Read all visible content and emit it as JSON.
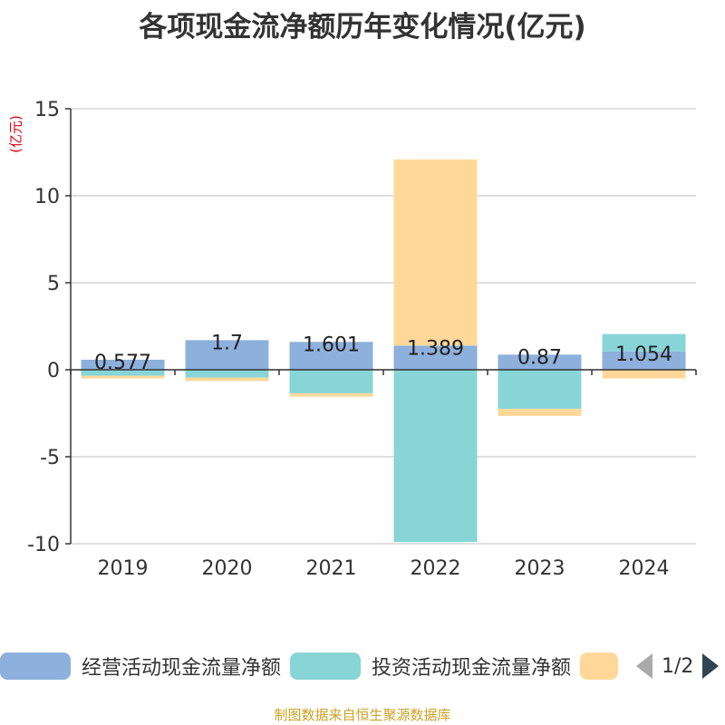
{
  "title": "各项现金流净额历年变化情况(亿元)",
  "unit_label": "(亿元)",
  "legend": {
    "items": [
      {
        "label": "经营活动现金流量净额",
        "color": "#8eb0dc"
      },
      {
        "label": "投资活动现金流量净额",
        "color": "#88d5d8"
      },
      {
        "label": "",
        "color": "#ffd899"
      }
    ],
    "page_text": "1/2"
  },
  "footer": "制图数据来自恒生聚源数据库",
  "chart_data": {
    "type": "bar",
    "stacked": true,
    "categories": [
      "2019",
      "2020",
      "2021",
      "2022",
      "2023",
      "2024"
    ],
    "series": [
      {
        "name": "经营活动现金流量净额",
        "color": "#8eb0dc",
        "values": [
          0.577,
          1.7,
          1.601,
          1.389,
          0.87,
          1.054
        ]
      },
      {
        "name": "投资活动现金流量净额",
        "color": "#88d5d8",
        "values": [
          -0.35,
          -0.45,
          -1.35,
          -9.9,
          -2.25,
          1.0
        ]
      },
      {
        "color": "#ffd899",
        "values": [
          -0.15,
          -0.2,
          -0.2,
          10.7,
          -0.4,
          -0.5
        ]
      }
    ],
    "data_labels": [
      "0.577",
      "1.7",
      "1.601",
      "1.389",
      "0.87",
      "1.054"
    ],
    "ylim": [
      -10,
      15
    ],
    "yticks": [
      15,
      10,
      5,
      0,
      -5,
      -10
    ],
    "grid": true,
    "legend_position": "bottom"
  }
}
